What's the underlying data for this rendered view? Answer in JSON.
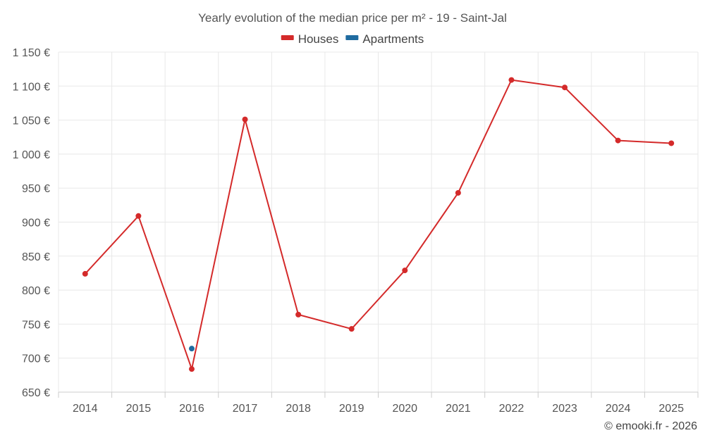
{
  "chart_data": {
    "type": "line",
    "title": "Yearly evolution of the median price per m² - 19 - Saint-Jal",
    "categories": [
      "2014",
      "2015",
      "2016",
      "2017",
      "2018",
      "2019",
      "2020",
      "2021",
      "2022",
      "2023",
      "2024",
      "2025"
    ],
    "series": [
      {
        "name": "Houses",
        "color": "#d42a2a",
        "values": [
          824,
          909,
          684,
          1051,
          764,
          743,
          829,
          943,
          1109,
          1098,
          1020,
          1016
        ]
      },
      {
        "name": "Apartments",
        "color": "#1f6ba0",
        "values": [
          null,
          null,
          714,
          null,
          null,
          null,
          null,
          null,
          null,
          null,
          null,
          null
        ]
      }
    ],
    "ylim": [
      650,
      1150
    ],
    "yticks": [
      650,
      700,
      750,
      800,
      850,
      900,
      950,
      1000,
      1050,
      1100,
      1150
    ],
    "ytick_labels": [
      "650 €",
      "700 €",
      "750 €",
      "800 €",
      "850 €",
      "900 €",
      "950 €",
      "1 000 €",
      "1 050 €",
      "1 100 €",
      "1 150 €"
    ],
    "xlabel": "",
    "ylabel": "",
    "grid": true,
    "legend_position": "top-center"
  },
  "credit": "© emooki.fr - 2026"
}
